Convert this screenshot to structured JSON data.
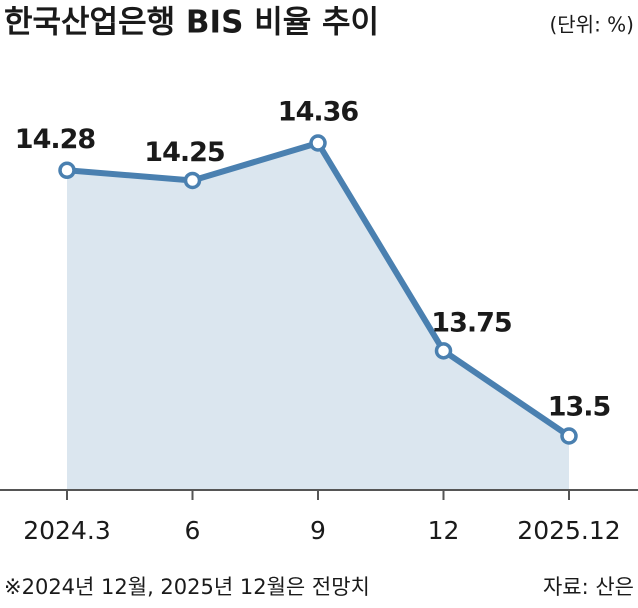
{
  "chart_data": {
    "type": "line",
    "title": "한국산업은행 BIS 비율 추이",
    "unit": "(단위: %)",
    "categories": [
      "2024.3",
      "6",
      "9",
      "12",
      "2025.12"
    ],
    "series": [
      {
        "color": "#4a80b0",
        "values": [
          14.28,
          14.25,
          14.36,
          13.75,
          13.5
        ]
      }
    ],
    "area_color": "#dbe6ef",
    "note": "※2024년 12월, 2025년 12월은 전망치",
    "source": "자료: 산은"
  }
}
